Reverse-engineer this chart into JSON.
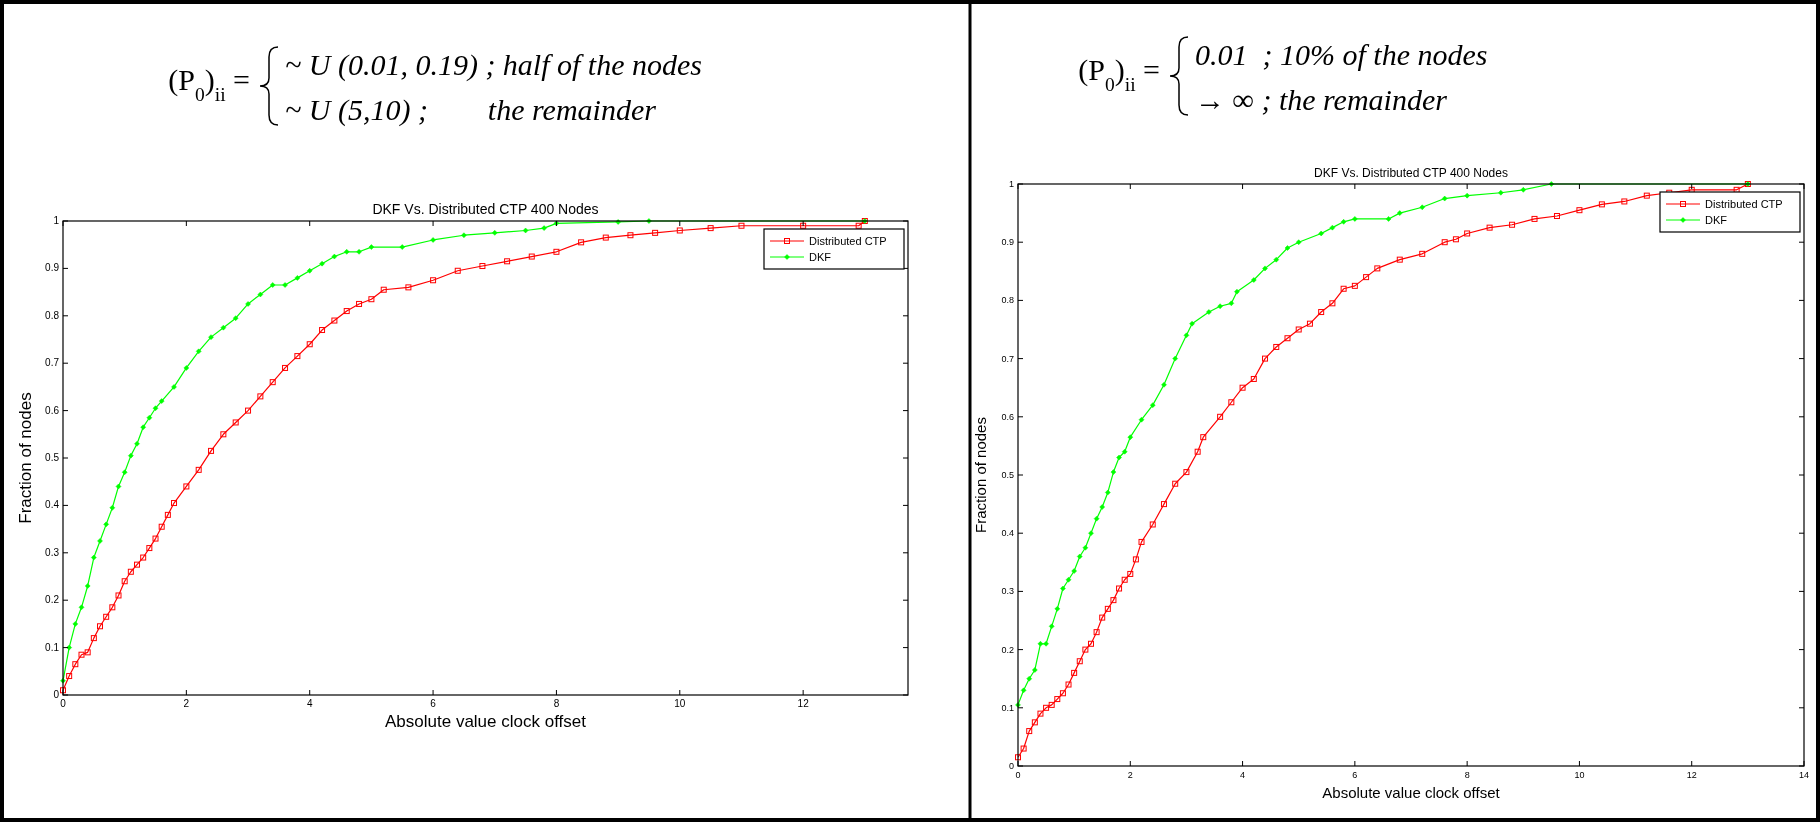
{
  "chart_data": [
    {
      "type": "line",
      "title": "DKF Vs. Distributed CTP 400 Nodes",
      "xlabel": "Absolute value clock offset",
      "ylabel": "Fraction of nodes",
      "annotations": [
        "(P$_{0}$)$_{ii}$ =",
        "~ U (0.01, 0.19) ; half of the nodes",
        "~ U (5,10) ;        the remainder"
      ],
      "xlim": [
        0,
        13.7
      ],
      "xticks": [
        0,
        2,
        4,
        6,
        8,
        10,
        12
      ],
      "ylim": [
        0,
        1
      ],
      "yticks": [
        0,
        0.1,
        0.2,
        0.3,
        0.4,
        0.5,
        0.6,
        0.7,
        0.8,
        0.9,
        1
      ],
      "grid": false,
      "legend": "top right",
      "series": [
        {
          "name": "Distributed CTP",
          "color": "#ff0000",
          "marker": "square",
          "x": [
            0,
            0.1,
            0.2,
            0.3,
            0.4,
            0.5,
            0.6,
            0.7,
            0.8,
            0.9,
            1.0,
            1.1,
            1.2,
            1.3,
            1.4,
            1.5,
            1.6,
            1.7,
            1.8,
            2.0,
            2.2,
            2.4,
            2.6,
            2.8,
            3.0,
            3.2,
            3.4,
            3.6,
            3.8,
            4.0,
            4.2,
            4.4,
            4.6,
            4.8,
            5.0,
            5.2,
            5.6,
            6.0,
            6.4,
            6.8,
            7.2,
            7.6,
            8.0,
            8.4,
            8.8,
            9.2,
            9.6,
            10.0,
            10.5,
            11.0,
            12.0,
            12.9,
            13.0
          ],
          "values": [
            0.01,
            0.04,
            0.065,
            0.085,
            0.09,
            0.12,
            0.145,
            0.165,
            0.185,
            0.21,
            0.24,
            0.26,
            0.275,
            0.29,
            0.31,
            0.33,
            0.355,
            0.38,
            0.405,
            0.44,
            0.475,
            0.515,
            0.55,
            0.575,
            0.6,
            0.63,
            0.66,
            0.69,
            0.715,
            0.74,
            0.77,
            0.79,
            0.81,
            0.825,
            0.835,
            0.855,
            0.86,
            0.875,
            0.895,
            0.905,
            0.915,
            0.925,
            0.935,
            0.955,
            0.965,
            0.97,
            0.975,
            0.98,
            0.985,
            0.99,
            0.99,
            0.99,
            1.0
          ]
        },
        {
          "name": "DKF",
          "color": "#00ff00",
          "marker": "diamond",
          "x": [
            0,
            0.1,
            0.2,
            0.3,
            0.4,
            0.5,
            0.6,
            0.7,
            0.8,
            0.9,
            1.0,
            1.1,
            1.2,
            1.3,
            1.4,
            1.5,
            1.6,
            1.8,
            2.0,
            2.2,
            2.4,
            2.6,
            2.8,
            3.0,
            3.2,
            3.4,
            3.6,
            3.8,
            4.0,
            4.2,
            4.4,
            4.6,
            4.8,
            5.0,
            5.5,
            6.0,
            6.5,
            7.0,
            7.5,
            7.8,
            8.0,
            9.0,
            9.5,
            13.0
          ],
          "values": [
            0.03,
            0.1,
            0.15,
            0.185,
            0.23,
            0.29,
            0.325,
            0.36,
            0.395,
            0.44,
            0.47,
            0.505,
            0.53,
            0.565,
            0.585,
            0.605,
            0.62,
            0.65,
            0.69,
            0.725,
            0.755,
            0.775,
            0.795,
            0.825,
            0.845,
            0.865,
            0.865,
            0.88,
            0.895,
            0.91,
            0.925,
            0.935,
            0.935,
            0.945,
            0.945,
            0.96,
            0.97,
            0.975,
            0.98,
            0.985,
            0.995,
            0.998,
            1.0,
            1.0
          ]
        }
      ]
    },
    {
      "type": "line",
      "title": "DKF Vs. Distributed CTP 400 Nodes",
      "xlabel": "Absolute value clock offset",
      "ylabel": "Fraction of nodes",
      "annotations": [
        "(P$_{0}$)$_{ii}$ =",
        "0.01  ; 10% of the nodes",
        "→ ∞ ; the remainder"
      ],
      "xlim": [
        0,
        14
      ],
      "xticks": [
        0,
        2,
        4,
        6,
        8,
        10,
        12,
        14
      ],
      "ylim": [
        0,
        1
      ],
      "yticks": [
        0,
        0.1,
        0.2,
        0.3,
        0.4,
        0.5,
        0.6,
        0.7,
        0.8,
        0.9,
        1
      ],
      "grid": false,
      "legend": "top right",
      "series": [
        {
          "name": "Distributed CTP",
          "color": "#ff0000",
          "marker": "square",
          "x": [
            0,
            0.1,
            0.2,
            0.3,
            0.4,
            0.5,
            0.6,
            0.7,
            0.8,
            0.9,
            1.0,
            1.1,
            1.2,
            1.3,
            1.4,
            1.5,
            1.6,
            1.7,
            1.8,
            1.9,
            2.0,
            2.1,
            2.2,
            2.4,
            2.6,
            2.8,
            3.0,
            3.2,
            3.3,
            3.6,
            3.8,
            4.0,
            4.2,
            4.4,
            4.6,
            4.8,
            5.0,
            5.2,
            5.4,
            5.6,
            5.8,
            6.0,
            6.2,
            6.4,
            6.8,
            7.2,
            7.6,
            7.8,
            8.0,
            8.4,
            8.8,
            9.2,
            9.6,
            10.0,
            10.4,
            10.8,
            11.2,
            11.6,
            12.0,
            12.8,
            13.0
          ],
          "values": [
            0.015,
            0.03,
            0.06,
            0.075,
            0.09,
            0.1,
            0.105,
            0.115,
            0.125,
            0.14,
            0.16,
            0.18,
            0.2,
            0.21,
            0.23,
            0.255,
            0.27,
            0.285,
            0.305,
            0.32,
            0.33,
            0.355,
            0.385,
            0.415,
            0.45,
            0.485,
            0.505,
            0.54,
            0.565,
            0.6,
            0.625,
            0.65,
            0.665,
            0.7,
            0.72,
            0.735,
            0.75,
            0.76,
            0.78,
            0.795,
            0.82,
            0.825,
            0.84,
            0.855,
            0.87,
            0.88,
            0.9,
            0.905,
            0.915,
            0.925,
            0.93,
            0.94,
            0.945,
            0.955,
            0.965,
            0.97,
            0.98,
            0.985,
            0.99,
            0.99,
            1.0
          ]
        },
        {
          "name": "DKF",
          "color": "#00ff00",
          "marker": "diamond",
          "x": [
            0,
            0.1,
            0.2,
            0.3,
            0.4,
            0.5,
            0.6,
            0.7,
            0.8,
            0.9,
            1.0,
            1.1,
            1.2,
            1.3,
            1.4,
            1.5,
            1.6,
            1.7,
            1.8,
            1.9,
            2.0,
            2.2,
            2.4,
            2.6,
            2.8,
            3.0,
            3.1,
            3.4,
            3.6,
            3.8,
            3.9,
            4.2,
            4.4,
            4.6,
            4.8,
            5.0,
            5.4,
            5.6,
            5.8,
            6.0,
            6.6,
            6.8,
            7.2,
            7.6,
            8.0,
            8.6,
            9.0,
            9.5,
            13.0
          ],
          "values": [
            0.105,
            0.13,
            0.15,
            0.165,
            0.21,
            0.21,
            0.24,
            0.27,
            0.305,
            0.32,
            0.335,
            0.36,
            0.375,
            0.4,
            0.425,
            0.445,
            0.47,
            0.505,
            0.53,
            0.54,
            0.565,
            0.595,
            0.62,
            0.655,
            0.7,
            0.74,
            0.76,
            0.78,
            0.79,
            0.795,
            0.815,
            0.835,
            0.855,
            0.87,
            0.89,
            0.9,
            0.915,
            0.925,
            0.935,
            0.94,
            0.94,
            0.95,
            0.96,
            0.975,
            0.98,
            0.985,
            0.99,
            1.0,
            1.0
          ]
        }
      ]
    }
  ]
}
